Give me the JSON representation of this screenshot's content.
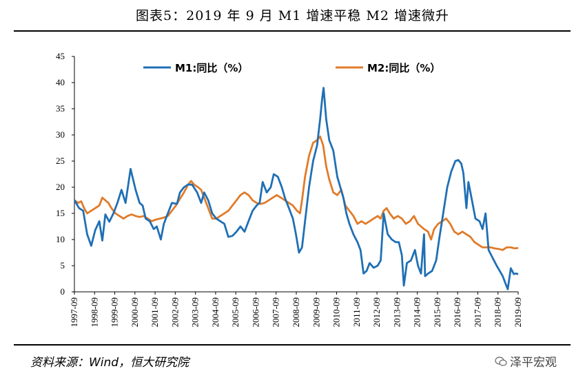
{
  "header": {
    "title": "图表5：2019 年 9 月 M1 增速平稳 M2 增速微升"
  },
  "footer": {
    "source": "资料来源：Wind，恒大研究院",
    "watermark": "泽平宏观"
  },
  "chart_data": {
    "type": "line",
    "title": "图表5：2019 年 9 月 M1 增速平稳 M2 增速微升",
    "xlabel": "",
    "ylabel": "",
    "ylim": [
      0,
      45
    ],
    "yticks": [
      0,
      5,
      10,
      15,
      20,
      25,
      30,
      35,
      40,
      45
    ],
    "xlim": [
      1997.6667,
      2019.6667
    ],
    "xticks": [
      "1997-09",
      "1998-09",
      "1999-09",
      "2000-09",
      "2001-09",
      "2002-09",
      "2003-09",
      "2004-09",
      "2005-09",
      "2006-09",
      "2007-09",
      "2008-09",
      "2009-09",
      "2010-09",
      "2011-09",
      "2012-09",
      "2013-09",
      "2014-09",
      "2015-09",
      "2016-09",
      "2017-09",
      "2018-09",
      "2019-09"
    ],
    "legend_position": "top",
    "series": [
      {
        "name": "M1:同比（%）",
        "color": "#1f6fb5",
        "points": [
          [
            1997.67,
            17.5
          ],
          [
            1997.9,
            16
          ],
          [
            1998.1,
            15.5
          ],
          [
            1998.3,
            11
          ],
          [
            1998.5,
            8.8
          ],
          [
            1998.7,
            11.8
          ],
          [
            1998.9,
            13.5
          ],
          [
            1999.05,
            9.8
          ],
          [
            1999.2,
            14.8
          ],
          [
            1999.4,
            13.4
          ],
          [
            1999.6,
            15
          ],
          [
            1999.8,
            17
          ],
          [
            2000.0,
            19.5
          ],
          [
            2000.2,
            17
          ],
          [
            2000.45,
            23.5
          ],
          [
            2000.7,
            19.5
          ],
          [
            2000.9,
            17
          ],
          [
            2001.05,
            16.5
          ],
          [
            2001.2,
            14
          ],
          [
            2001.4,
            13.5
          ],
          [
            2001.6,
            12
          ],
          [
            2001.75,
            12.5
          ],
          [
            2001.95,
            10
          ],
          [
            2002.1,
            13
          ],
          [
            2002.3,
            15
          ],
          [
            2002.5,
            17
          ],
          [
            2002.75,
            16.8
          ],
          [
            2002.9,
            19
          ],
          [
            2003.1,
            20
          ],
          [
            2003.3,
            20.5
          ],
          [
            2003.5,
            20.5
          ],
          [
            2003.75,
            19
          ],
          [
            2003.95,
            17
          ],
          [
            2004.1,
            19
          ],
          [
            2004.3,
            17.5
          ],
          [
            2004.5,
            15
          ],
          [
            2004.7,
            14
          ],
          [
            2004.9,
            13.5
          ],
          [
            2005.1,
            13
          ],
          [
            2005.3,
            10.5
          ],
          [
            2005.5,
            10.7
          ],
          [
            2005.7,
            11.5
          ],
          [
            2005.9,
            12.5
          ],
          [
            2006.1,
            11.5
          ],
          [
            2006.3,
            13.5
          ],
          [
            2006.5,
            15.5
          ],
          [
            2006.7,
            16.5
          ],
          [
            2006.85,
            17
          ],
          [
            2007.0,
            21
          ],
          [
            2007.2,
            19
          ],
          [
            2007.4,
            20
          ],
          [
            2007.55,
            22.5
          ],
          [
            2007.75,
            22
          ],
          [
            2007.95,
            20
          ],
          [
            2008.1,
            18
          ],
          [
            2008.3,
            16
          ],
          [
            2008.5,
            14
          ],
          [
            2008.65,
            11
          ],
          [
            2008.8,
            7.5
          ],
          [
            2008.95,
            8.5
          ],
          [
            2009.1,
            13.5
          ],
          [
            2009.3,
            20
          ],
          [
            2009.5,
            25
          ],
          [
            2009.7,
            28
          ],
          [
            2009.85,
            33
          ],
          [
            2009.95,
            37
          ],
          [
            2010.02,
            39
          ],
          [
            2010.15,
            33
          ],
          [
            2010.3,
            29
          ],
          [
            2010.5,
            27
          ],
          [
            2010.7,
            22
          ],
          [
            2010.85,
            20
          ],
          [
            2011.0,
            18
          ],
          [
            2011.15,
            15
          ],
          [
            2011.3,
            13
          ],
          [
            2011.5,
            11
          ],
          [
            2011.7,
            9.5
          ],
          [
            2011.85,
            8
          ],
          [
            2012.0,
            3.5
          ],
          [
            2012.15,
            4
          ],
          [
            2012.3,
            5.5
          ],
          [
            2012.5,
            4.6
          ],
          [
            2012.7,
            5
          ],
          [
            2012.85,
            6
          ],
          [
            2013.0,
            15
          ],
          [
            2013.2,
            11
          ],
          [
            2013.4,
            10
          ],
          [
            2013.6,
            9.5
          ],
          [
            2013.75,
            9.5
          ],
          [
            2013.9,
            7
          ],
          [
            2014.0,
            1.2
          ],
          [
            2014.15,
            5.5
          ],
          [
            2014.35,
            6
          ],
          [
            2014.55,
            8
          ],
          [
            2014.7,
            5
          ],
          [
            2014.85,
            3.5
          ],
          [
            2015.0,
            11
          ],
          [
            2015.05,
            3
          ],
          [
            2015.2,
            3.5
          ],
          [
            2015.4,
            4
          ],
          [
            2015.6,
            6
          ],
          [
            2015.75,
            10
          ],
          [
            2015.95,
            15
          ],
          [
            2016.15,
            20
          ],
          [
            2016.35,
            23
          ],
          [
            2016.55,
            25
          ],
          [
            2016.7,
            25.2
          ],
          [
            2016.85,
            24.5
          ],
          [
            2016.95,
            22.7
          ],
          [
            2017.1,
            16
          ],
          [
            2017.2,
            21
          ],
          [
            2017.35,
            18
          ],
          [
            2017.55,
            14
          ],
          [
            2017.75,
            13.5
          ],
          [
            2017.9,
            12
          ],
          [
            2018.05,
            15
          ],
          [
            2018.2,
            8
          ],
          [
            2018.4,
            6.5
          ],
          [
            2018.6,
            5
          ],
          [
            2018.75,
            4
          ],
          [
            2018.9,
            3
          ],
          [
            2019.05,
            1.5
          ],
          [
            2019.15,
            0.5
          ],
          [
            2019.3,
            4.5
          ],
          [
            2019.45,
            3.4
          ],
          [
            2019.55,
            3.5
          ],
          [
            2019.67,
            3.4
          ]
        ]
      },
      {
        "name": "M2:同比（%）",
        "color": "#e07b29",
        "points": [
          [
            1997.67,
            17.5
          ],
          [
            1997.85,
            17
          ],
          [
            1998.0,
            17.3
          ],
          [
            1998.15,
            16
          ],
          [
            1998.3,
            15
          ],
          [
            1998.5,
            15.5
          ],
          [
            1998.7,
            16
          ],
          [
            1998.9,
            16.5
          ],
          [
            1999.05,
            18
          ],
          [
            1999.2,
            17.5
          ],
          [
            1999.35,
            17
          ],
          [
            1999.5,
            16
          ],
          [
            1999.7,
            15
          ],
          [
            1999.9,
            14.5
          ],
          [
            2000.1,
            14
          ],
          [
            2000.3,
            14.5
          ],
          [
            2000.5,
            14.8
          ],
          [
            2000.7,
            14.5
          ],
          [
            2000.9,
            14.3
          ],
          [
            2001.1,
            14.5
          ],
          [
            2001.3,
            14
          ],
          [
            2001.5,
            13.5
          ],
          [
            2001.7,
            13.8
          ],
          [
            2001.9,
            14
          ],
          [
            2002.1,
            14.2
          ],
          [
            2002.3,
            14.5
          ],
          [
            2002.5,
            15.5
          ],
          [
            2002.7,
            16.5
          ],
          [
            2002.9,
            17.8
          ],
          [
            2003.1,
            19
          ],
          [
            2003.3,
            20.5
          ],
          [
            2003.45,
            21.2
          ],
          [
            2003.6,
            20.5
          ],
          [
            2003.8,
            20
          ],
          [
            2003.95,
            19.5
          ],
          [
            2004.1,
            18
          ],
          [
            2004.3,
            16
          ],
          [
            2004.5,
            14
          ],
          [
            2004.7,
            14
          ],
          [
            2004.9,
            14.5
          ],
          [
            2005.1,
            15
          ],
          [
            2005.3,
            15.5
          ],
          [
            2005.5,
            16.5
          ],
          [
            2005.7,
            17.5
          ],
          [
            2005.9,
            18.5
          ],
          [
            2006.1,
            19
          ],
          [
            2006.3,
            18.5
          ],
          [
            2006.5,
            17.5
          ],
          [
            2006.7,
            17
          ],
          [
            2006.9,
            16.8
          ],
          [
            2007.1,
            17
          ],
          [
            2007.3,
            17.5
          ],
          [
            2007.5,
            18
          ],
          [
            2007.7,
            18.5
          ],
          [
            2007.9,
            18
          ],
          [
            2008.1,
            17.5
          ],
          [
            2008.3,
            17
          ],
          [
            2008.5,
            16.5
          ],
          [
            2008.7,
            15.5
          ],
          [
            2008.85,
            15
          ],
          [
            2008.95,
            17.5
          ],
          [
            2009.1,
            22
          ],
          [
            2009.3,
            26
          ],
          [
            2009.5,
            28.5
          ],
          [
            2009.7,
            29
          ],
          [
            2009.85,
            29.7
          ],
          [
            2010.0,
            28
          ],
          [
            2010.15,
            24
          ],
          [
            2010.3,
            21.5
          ],
          [
            2010.5,
            19
          ],
          [
            2010.7,
            18.5
          ],
          [
            2010.9,
            19.5
          ],
          [
            2011.1,
            16.5
          ],
          [
            2011.3,
            15.5
          ],
          [
            2011.5,
            14.5
          ],
          [
            2011.7,
            13
          ],
          [
            2011.9,
            13.5
          ],
          [
            2012.1,
            13
          ],
          [
            2012.3,
            13.5
          ],
          [
            2012.5,
            14
          ],
          [
            2012.7,
            14.5
          ],
          [
            2012.85,
            14
          ],
          [
            2013.0,
            15.5
          ],
          [
            2013.15,
            16
          ],
          [
            2013.3,
            15
          ],
          [
            2013.5,
            14
          ],
          [
            2013.7,
            14.5
          ],
          [
            2013.9,
            14
          ],
          [
            2014.1,
            13
          ],
          [
            2014.3,
            13.5
          ],
          [
            2014.5,
            14.5
          ],
          [
            2014.7,
            13
          ],
          [
            2014.85,
            12.5
          ],
          [
            2015.0,
            12
          ],
          [
            2015.2,
            11.5
          ],
          [
            2015.35,
            10
          ],
          [
            2015.5,
            12
          ],
          [
            2015.7,
            13
          ],
          [
            2015.9,
            13.5
          ],
          [
            2016.1,
            14
          ],
          [
            2016.3,
            13
          ],
          [
            2016.5,
            11.5
          ],
          [
            2016.7,
            11
          ],
          [
            2016.9,
            11.5
          ],
          [
            2017.1,
            11
          ],
          [
            2017.3,
            10.5
          ],
          [
            2017.5,
            9.5
          ],
          [
            2017.7,
            9
          ],
          [
            2017.9,
            8.5
          ],
          [
            2018.1,
            8.5
          ],
          [
            2018.3,
            8.5
          ],
          [
            2018.5,
            8.3
          ],
          [
            2018.7,
            8.2
          ],
          [
            2018.9,
            8
          ],
          [
            2019.1,
            8.5
          ],
          [
            2019.3,
            8.5
          ],
          [
            2019.5,
            8.3
          ],
          [
            2019.67,
            8.4
          ]
        ]
      }
    ]
  }
}
